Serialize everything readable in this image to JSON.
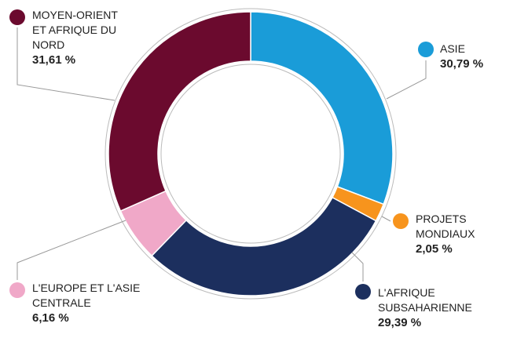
{
  "chart_data": {
    "type": "donut",
    "categories": [
      "ASIE",
      "PROJETS MONDIAUX",
      "L'AFRIQUE SUBSAHARIENNE",
      "L'EUROPE ET L'ASIE CENTRALE",
      "MOYEN-ORIENT ET AFRIQUE DU NORD"
    ],
    "values": [
      30.79,
      2.05,
      29.39,
      6.16,
      31.61
    ],
    "value_labels": [
      "30,79 %",
      "2,05 %",
      "29,39 %",
      "6,16 %",
      "31,61 %"
    ],
    "colors": [
      "#1a9cd8",
      "#f7941d",
      "#1c2f5e",
      "#f0a8c8",
      "#6b0a2e"
    ]
  }
}
